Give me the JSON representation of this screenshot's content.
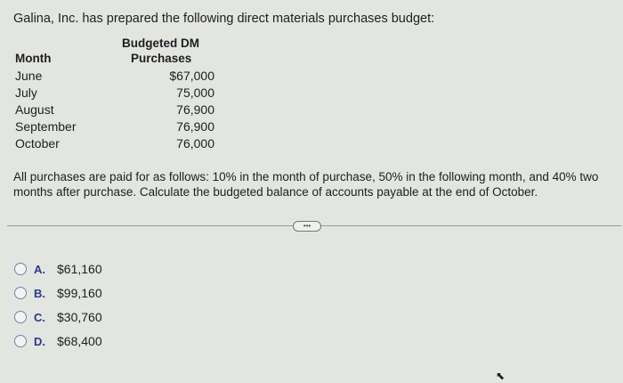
{
  "question": {
    "intro": "Galina, Inc. has prepared the following direct materials purchases budget:",
    "table": {
      "headers": {
        "month": "Month",
        "purchases_line1": "Budgeted DM",
        "purchases_line2": "Purchases"
      },
      "rows": [
        {
          "month": "June",
          "value": "$67,000"
        },
        {
          "month": "July",
          "value": "75,000"
        },
        {
          "month": "August",
          "value": "76,900"
        },
        {
          "month": "September",
          "value": "76,900"
        },
        {
          "month": "October",
          "value": "76,000"
        }
      ]
    },
    "prompt": "All purchases are paid for as follows: 10% in the month of purchase, 50% in the following month, and 40% two months after purchase. Calculate the budgeted balance of accounts payable at the end of October."
  },
  "more_button": "•••",
  "options": [
    {
      "letter": "A.",
      "value": "$61,160"
    },
    {
      "letter": "B.",
      "value": "$99,160"
    },
    {
      "letter": "C.",
      "value": "$30,760"
    },
    {
      "letter": "D.",
      "value": "$68,400"
    }
  ]
}
